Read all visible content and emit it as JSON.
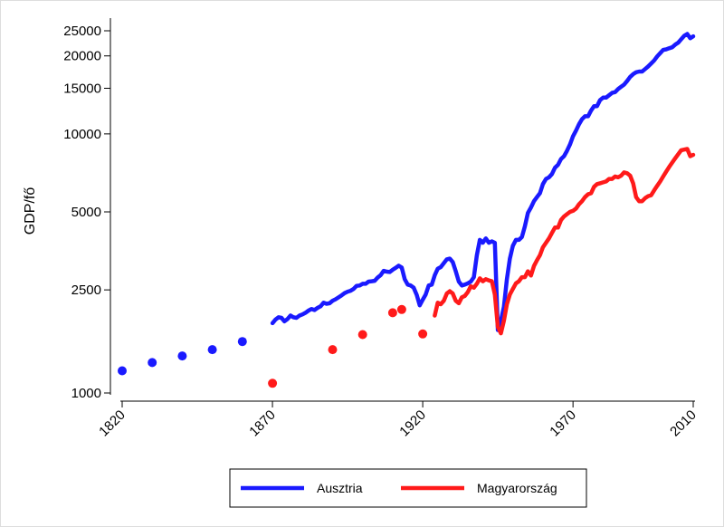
{
  "chart_data": {
    "type": "line",
    "title": "",
    "xlabel": "",
    "ylabel": "GDP/fő",
    "y_scale": "log",
    "xlim": [
      1820,
      2010
    ],
    "ylim": [
      1000,
      25000
    ],
    "x_ticks": [
      1820,
      1870,
      1920,
      1970,
      2010
    ],
    "y_ticks": [
      1000,
      2500,
      5000,
      10000,
      15000,
      20000,
      25000
    ],
    "grid": false,
    "legend_position": "bottom",
    "series": [
      {
        "name": "Ausztria",
        "color": "#1a1aff",
        "points": [
          [
            1820,
            1218
          ],
          [
            1830,
            1310
          ],
          [
            1840,
            1390
          ],
          [
            1850,
            1470
          ],
          [
            1860,
            1580
          ]
        ],
        "line": [
          [
            1870,
            1860
          ],
          [
            1871,
            1920
          ],
          [
            1872,
            1960
          ],
          [
            1873,
            1950
          ],
          [
            1874,
            1890
          ],
          [
            1875,
            1930
          ],
          [
            1876,
            1990
          ],
          [
            1877,
            1960
          ],
          [
            1878,
            1950
          ],
          [
            1879,
            1990
          ],
          [
            1880,
            2010
          ],
          [
            1881,
            2040
          ],
          [
            1882,
            2080
          ],
          [
            1883,
            2110
          ],
          [
            1884,
            2090
          ],
          [
            1885,
            2130
          ],
          [
            1886,
            2160
          ],
          [
            1887,
            2230
          ],
          [
            1888,
            2210
          ],
          [
            1889,
            2220
          ],
          [
            1890,
            2270
          ],
          [
            1891,
            2300
          ],
          [
            1892,
            2340
          ],
          [
            1893,
            2380
          ],
          [
            1894,
            2430
          ],
          [
            1895,
            2460
          ],
          [
            1896,
            2480
          ],
          [
            1897,
            2520
          ],
          [
            1898,
            2590
          ],
          [
            1899,
            2600
          ],
          [
            1900,
            2640
          ],
          [
            1901,
            2640
          ],
          [
            1902,
            2690
          ],
          [
            1903,
            2700
          ],
          [
            1904,
            2710
          ],
          [
            1905,
            2790
          ],
          [
            1906,
            2850
          ],
          [
            1907,
            2960
          ],
          [
            1908,
            2940
          ],
          [
            1909,
            2930
          ],
          [
            1910,
            2990
          ],
          [
            1911,
            3040
          ],
          [
            1912,
            3100
          ],
          [
            1913,
            3050
          ],
          [
            1914,
            2750
          ],
          [
            1915,
            2620
          ],
          [
            1916,
            2600
          ],
          [
            1917,
            2550
          ],
          [
            1918,
            2390
          ],
          [
            1919,
            2180
          ],
          [
            1920,
            2290
          ],
          [
            1921,
            2400
          ],
          [
            1922,
            2600
          ],
          [
            1923,
            2620
          ],
          [
            1924,
            2850
          ],
          [
            1925,
            3020
          ],
          [
            1926,
            3060
          ],
          [
            1927,
            3170
          ],
          [
            1928,
            3280
          ],
          [
            1929,
            3300
          ],
          [
            1930,
            3200
          ],
          [
            1931,
            2950
          ],
          [
            1932,
            2690
          ],
          [
            1933,
            2600
          ],
          [
            1934,
            2620
          ],
          [
            1935,
            2650
          ],
          [
            1936,
            2690
          ],
          [
            1937,
            2800
          ],
          [
            1938,
            3400
          ],
          [
            1939,
            3900
          ],
          [
            1940,
            3800
          ],
          [
            1941,
            3950
          ],
          [
            1942,
            3800
          ],
          [
            1943,
            3850
          ],
          [
            1944,
            3800
          ],
          [
            1945,
            1750
          ],
          [
            1946,
            1900
          ],
          [
            1947,
            2150
          ],
          [
            1948,
            2750
          ],
          [
            1949,
            3300
          ],
          [
            1950,
            3700
          ],
          [
            1951,
            3900
          ],
          [
            1952,
            3900
          ],
          [
            1953,
            4000
          ],
          [
            1954,
            4400
          ],
          [
            1955,
            4950
          ],
          [
            1956,
            5200
          ],
          [
            1957,
            5500
          ],
          [
            1958,
            5700
          ],
          [
            1959,
            5900
          ],
          [
            1960,
            6400
          ],
          [
            1961,
            6700
          ],
          [
            1962,
            6800
          ],
          [
            1963,
            7000
          ],
          [
            1964,
            7400
          ],
          [
            1965,
            7600
          ],
          [
            1966,
            8000
          ],
          [
            1967,
            8200
          ],
          [
            1968,
            8600
          ],
          [
            1969,
            9100
          ],
          [
            1970,
            9800
          ],
          [
            1971,
            10300
          ],
          [
            1972,
            10900
          ],
          [
            1973,
            11400
          ],
          [
            1974,
            11700
          ],
          [
            1975,
            11700
          ],
          [
            1976,
            12300
          ],
          [
            1977,
            12800
          ],
          [
            1978,
            12800
          ],
          [
            1979,
            13500
          ],
          [
            1980,
            13800
          ],
          [
            1981,
            13800
          ],
          [
            1982,
            14100
          ],
          [
            1983,
            14400
          ],
          [
            1984,
            14500
          ],
          [
            1985,
            14900
          ],
          [
            1986,
            15200
          ],
          [
            1987,
            15500
          ],
          [
            1988,
            16000
          ],
          [
            1989,
            16600
          ],
          [
            1990,
            17000
          ],
          [
            1991,
            17300
          ],
          [
            1992,
            17400
          ],
          [
            1993,
            17400
          ],
          [
            1994,
            17800
          ],
          [
            1995,
            18200
          ],
          [
            1996,
            18700
          ],
          [
            1997,
            19200
          ],
          [
            1998,
            19900
          ],
          [
            1999,
            20500
          ],
          [
            2000,
            21100
          ],
          [
            2001,
            21200
          ],
          [
            2002,
            21400
          ],
          [
            2003,
            21600
          ],
          [
            2004,
            22100
          ],
          [
            2005,
            22500
          ],
          [
            2006,
            23200
          ],
          [
            2007,
            23900
          ],
          [
            2008,
            24300
          ],
          [
            2009,
            23400
          ],
          [
            2010,
            23800
          ]
        ]
      },
      {
        "name": "Magyarország",
        "color": "#ff1a1a",
        "points": [
          [
            1870,
            1090
          ],
          [
            1890,
            1470
          ],
          [
            1900,
            1680
          ],
          [
            1910,
            2040
          ],
          [
            1913,
            2100
          ],
          [
            1920,
            1690
          ]
        ],
        "line": [
          [
            1924,
            1990
          ],
          [
            1925,
            2230
          ],
          [
            1926,
            2200
          ],
          [
            1927,
            2270
          ],
          [
            1928,
            2420
          ],
          [
            1929,
            2470
          ],
          [
            1930,
            2420
          ],
          [
            1931,
            2270
          ],
          [
            1932,
            2220
          ],
          [
            1933,
            2340
          ],
          [
            1934,
            2370
          ],
          [
            1935,
            2450
          ],
          [
            1936,
            2580
          ],
          [
            1937,
            2550
          ],
          [
            1938,
            2640
          ],
          [
            1939,
            2770
          ],
          [
            1940,
            2700
          ],
          [
            1941,
            2750
          ],
          [
            1942,
            2720
          ],
          [
            1943,
            2700
          ],
          [
            1944,
            2400
          ],
          [
            1945,
            1800
          ],
          [
            1946,
            1700
          ],
          [
            1947,
            1900
          ],
          [
            1948,
            2200
          ],
          [
            1949,
            2400
          ],
          [
            1950,
            2520
          ],
          [
            1951,
            2650
          ],
          [
            1952,
            2700
          ],
          [
            1953,
            2800
          ],
          [
            1954,
            2800
          ],
          [
            1955,
            2950
          ],
          [
            1956,
            2840
          ],
          [
            1957,
            3090
          ],
          [
            1958,
            3250
          ],
          [
            1959,
            3400
          ],
          [
            1960,
            3650
          ],
          [
            1961,
            3800
          ],
          [
            1962,
            3950
          ],
          [
            1963,
            4150
          ],
          [
            1964,
            4350
          ],
          [
            1965,
            4350
          ],
          [
            1966,
            4650
          ],
          [
            1967,
            4800
          ],
          [
            1968,
            4900
          ],
          [
            1969,
            5000
          ],
          [
            1970,
            5050
          ],
          [
            1971,
            5150
          ],
          [
            1972,
            5350
          ],
          [
            1973,
            5500
          ],
          [
            1974,
            5700
          ],
          [
            1975,
            5850
          ],
          [
            1976,
            5900
          ],
          [
            1977,
            6250
          ],
          [
            1978,
            6400
          ],
          [
            1979,
            6450
          ],
          [
            1980,
            6500
          ],
          [
            1981,
            6550
          ],
          [
            1982,
            6700
          ],
          [
            1983,
            6700
          ],
          [
            1984,
            6850
          ],
          [
            1985,
            6800
          ],
          [
            1986,
            6900
          ],
          [
            1987,
            7100
          ],
          [
            1988,
            7050
          ],
          [
            1989,
            6900
          ],
          [
            1990,
            6450
          ],
          [
            1991,
            5700
          ],
          [
            1992,
            5500
          ],
          [
            1993,
            5500
          ],
          [
            1994,
            5650
          ],
          [
            1995,
            5750
          ],
          [
            1996,
            5800
          ],
          [
            1997,
            6050
          ],
          [
            1998,
            6300
          ],
          [
            1999,
            6550
          ],
          [
            2000,
            6850
          ],
          [
            2001,
            7150
          ],
          [
            2002,
            7450
          ],
          [
            2003,
            7750
          ],
          [
            2004,
            8050
          ],
          [
            2005,
            8350
          ],
          [
            2006,
            8650
          ],
          [
            2007,
            8700
          ],
          [
            2008,
            8750
          ],
          [
            2009,
            8200
          ],
          [
            2010,
            8300
          ]
        ]
      }
    ]
  }
}
